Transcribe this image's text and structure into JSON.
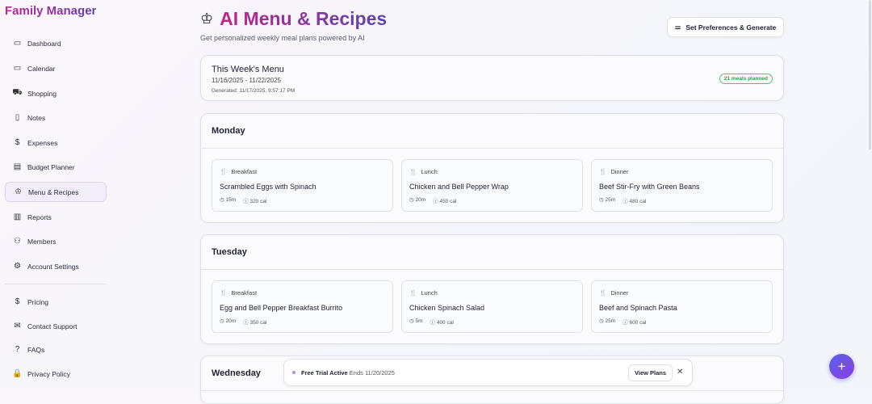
{
  "app": {
    "brand": "Family Manager"
  },
  "sidebar": {
    "items": [
      {
        "label": "Dashboard",
        "icon": "calendar-icon"
      },
      {
        "label": "Calendar",
        "icon": "calendar-icon"
      },
      {
        "label": "Shopping",
        "icon": "cart-icon"
      },
      {
        "label": "Notes",
        "icon": "note-icon"
      },
      {
        "label": "Expenses",
        "icon": "dollar-doc-icon"
      },
      {
        "label": "Budget Planner",
        "icon": "wallet-icon"
      },
      {
        "label": "Menu & Recipes",
        "icon": "chef-hat-icon",
        "active": true
      },
      {
        "label": "Reports",
        "icon": "bar-chart-icon"
      },
      {
        "label": "Members",
        "icon": "users-icon"
      },
      {
        "label": "Account Settings",
        "icon": "gear-icon"
      }
    ],
    "footer": [
      {
        "label": "Pricing",
        "icon": "dollar-icon"
      },
      {
        "label": "Contact Support",
        "icon": "mail-icon"
      },
      {
        "label": "FAQs",
        "icon": "help-icon"
      },
      {
        "label": "Privacy Policy",
        "icon": "lock-icon"
      }
    ]
  },
  "header": {
    "title": "AI Menu & Recipes",
    "subtitle": "Get personalized weekly meal plans powered by AI",
    "button": "Set Preferences & Generate"
  },
  "week": {
    "title": "This Week's Menu",
    "range": "11/16/2025 - 11/22/2025",
    "generated": "Generated: 11/17/2025, 9:57:17 PM",
    "badge": "21 meals planned"
  },
  "days": [
    {
      "name": "Monday",
      "meals": [
        {
          "type": "Breakfast",
          "name": "Scrambled Eggs with Spinach",
          "time": "15m",
          "cal": "320 cal"
        },
        {
          "type": "Lunch",
          "name": "Chicken and Bell Pepper Wrap",
          "time": "20m",
          "cal": "450 cal"
        },
        {
          "type": "Dinner",
          "name": "Beef Stir-Fry with Green Beans",
          "time": "25m",
          "cal": "480 cal"
        }
      ]
    },
    {
      "name": "Tuesday",
      "meals": [
        {
          "type": "Breakfast",
          "name": "Egg and Bell Pepper Breakfast Burrito",
          "time": "20m",
          "cal": "350 cal"
        },
        {
          "type": "Lunch",
          "name": "Chicken Spinach Salad",
          "time": "5m",
          "cal": "400 cal"
        },
        {
          "type": "Dinner",
          "name": "Beef and Spinach Pasta",
          "time": "25m",
          "cal": "600 cal"
        }
      ]
    },
    {
      "name": "Wednesday",
      "meals": []
    }
  ],
  "trial": {
    "label": "Free Trial Active",
    "ends": "Ends 11/20/2025",
    "button": "View Plans",
    "close": "✕"
  },
  "fab": "+"
}
